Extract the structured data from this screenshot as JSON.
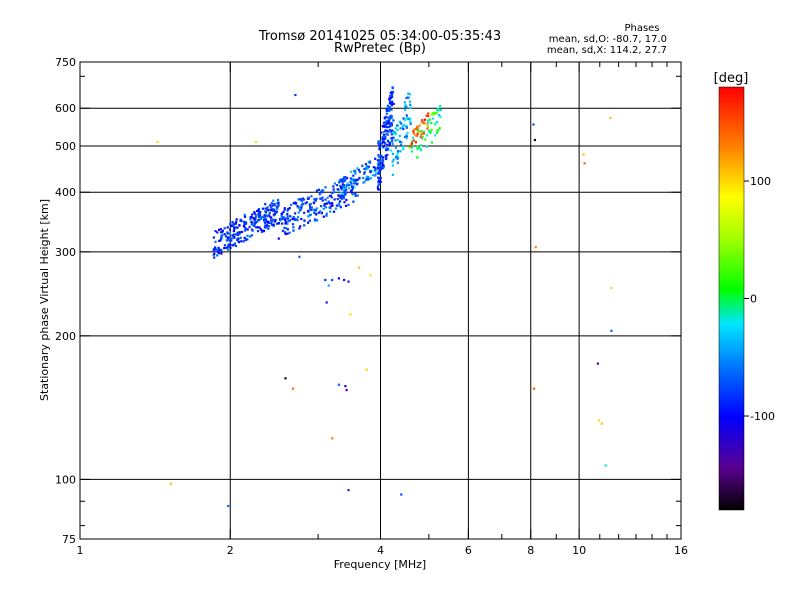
{
  "chart_data": {
    "type": "scatter",
    "title": "Tromsø 20141025 05:34:00-05:35:43",
    "subtitle": "RwPretec (Bp)",
    "xlabel": "Frequency [MHz]",
    "ylabel": "Stationary phase Virtual Height [km]",
    "x_scale": "log",
    "y_scale": "log",
    "xlim": [
      1,
      16
    ],
    "ylim": [
      75,
      750
    ],
    "x_ticks": [
      {
        "value": 1,
        "label": "1"
      },
      {
        "value": 2,
        "label": "2"
      },
      {
        "value": 4,
        "label": "4"
      },
      {
        "value": 6,
        "label": "6"
      },
      {
        "value": 8,
        "label": "8"
      },
      {
        "value": 10,
        "label": "10"
      },
      {
        "value": 16,
        "label": "16"
      }
    ],
    "y_ticks": [
      {
        "value": 75,
        "label": "75"
      },
      {
        "value": 100,
        "label": "100"
      },
      {
        "value": 200,
        "label": "200"
      },
      {
        "value": 300,
        "label": "300"
      },
      {
        "value": 400,
        "label": "400"
      },
      {
        "value": 500,
        "label": "500"
      },
      {
        "value": 600,
        "label": "600"
      },
      {
        "value": 750,
        "label": "750"
      }
    ],
    "x_gridlines": [
      2,
      4,
      6,
      8,
      10
    ],
    "y_gridlines": [
      100,
      200,
      300,
      400,
      500,
      600
    ],
    "stats": {
      "heading": "Phases",
      "line_o": "mean, sd,O: -80.7, 17.0",
      "line_x": "mean, sd,X: 114.2, 27.7"
    },
    "colorbar": {
      "label": "[deg]",
      "range": [
        -180,
        180
      ],
      "ticks": [
        {
          "value": 100,
          "label": "100"
        },
        {
          "value": 0,
          "label": "0"
        },
        {
          "value": -100,
          "label": "-100"
        }
      ]
    },
    "clusters": [
      {
        "x": [
          1.85,
          2.5
        ],
        "y": [
          300,
          380
        ],
        "phase": [
          -125,
          -95
        ],
        "n": 260
      },
      {
        "x": [
          2.5,
          3.6
        ],
        "y": [
          330,
          430
        ],
        "phase": [
          -125,
          -90
        ],
        "n": 230
      },
      {
        "x": [
          3.3,
          4.0
        ],
        "y": [
          400,
          470
        ],
        "phase": [
          -120,
          -70
        ],
        "n": 90
      },
      {
        "x": [
          3.95,
          4.25
        ],
        "y": [
          420,
          650
        ],
        "phase": [
          -125,
          -95
        ],
        "n": 160
      },
      {
        "x": [
          4.2,
          4.6
        ],
        "y": [
          440,
          640
        ],
        "phase": [
          -110,
          -60
        ],
        "n": 80
      },
      {
        "x": [
          4.55,
          5.3
        ],
        "y": [
          460,
          600
        ],
        "phase": [
          -80,
          40
        ],
        "n": 60
      },
      {
        "x": [
          4.6,
          5.0
        ],
        "y": [
          500,
          580
        ],
        "phase": [
          130,
          175
        ],
        "n": 30
      }
    ],
    "points": [
      {
        "x": 1.43,
        "y": 510,
        "phase": 110
      },
      {
        "x": 1.52,
        "y": 98,
        "phase": 120
      },
      {
        "x": 1.98,
        "y": 88,
        "phase": -95
      },
      {
        "x": 2.25,
        "y": 510,
        "phase": 110
      },
      {
        "x": 2.58,
        "y": 163,
        "phase": -170
      },
      {
        "x": 2.67,
        "y": 155,
        "phase": 145
      },
      {
        "x": 2.7,
        "y": 640,
        "phase": -110
      },
      {
        "x": 2.75,
        "y": 293,
        "phase": -100
      },
      {
        "x": 3.1,
        "y": 262,
        "phase": -110
      },
      {
        "x": 3.15,
        "y": 255,
        "phase": -80
      },
      {
        "x": 3.2,
        "y": 262,
        "phase": -105
      },
      {
        "x": 3.3,
        "y": 264,
        "phase": -125
      },
      {
        "x": 3.38,
        "y": 262,
        "phase": -135
      },
      {
        "x": 3.45,
        "y": 260,
        "phase": -115
      },
      {
        "x": 3.12,
        "y": 235,
        "phase": -115
      },
      {
        "x": 3.3,
        "y": 158,
        "phase": -100
      },
      {
        "x": 3.4,
        "y": 157,
        "phase": -130
      },
      {
        "x": 3.42,
        "y": 154,
        "phase": -140
      },
      {
        "x": 3.2,
        "y": 122,
        "phase": 140
      },
      {
        "x": 3.45,
        "y": 95,
        "phase": -110
      },
      {
        "x": 3.48,
        "y": 222,
        "phase": 110
      },
      {
        "x": 3.62,
        "y": 278,
        "phase": 120
      },
      {
        "x": 3.75,
        "y": 170,
        "phase": 115
      },
      {
        "x": 3.82,
        "y": 268,
        "phase": 110
      },
      {
        "x": 4.4,
        "y": 93,
        "phase": -105
      },
      {
        "x": 8.1,
        "y": 555,
        "phase": -105
      },
      {
        "x": 8.15,
        "y": 515,
        "phase": -170
      },
      {
        "x": 8.18,
        "y": 307,
        "phase": 140
      },
      {
        "x": 8.12,
        "y": 155,
        "phase": 150
      },
      {
        "x": 10.2,
        "y": 480,
        "phase": 120
      },
      {
        "x": 10.25,
        "y": 460,
        "phase": 150
      },
      {
        "x": 10.9,
        "y": 175,
        "phase": -150
      },
      {
        "x": 10.95,
        "y": 133,
        "phase": 110
      },
      {
        "x": 11.1,
        "y": 131,
        "phase": 120
      },
      {
        "x": 11.3,
        "y": 107,
        "phase": -60
      },
      {
        "x": 11.55,
        "y": 573,
        "phase": 120
      },
      {
        "x": 11.6,
        "y": 252,
        "phase": 110
      },
      {
        "x": 11.6,
        "y": 205,
        "phase": -100
      }
    ]
  }
}
